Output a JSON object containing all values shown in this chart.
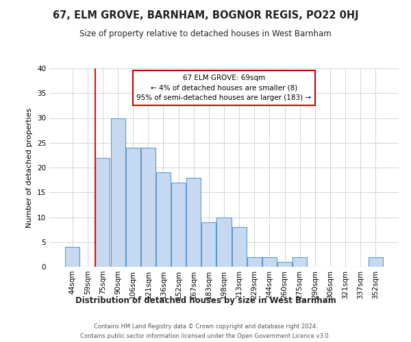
{
  "title": "67, ELM GROVE, BARNHAM, BOGNOR REGIS, PO22 0HJ",
  "subtitle": "Size of property relative to detached houses in West Barnham",
  "xlabel": "Distribution of detached houses by size in West Barnham",
  "ylabel": "Number of detached properties",
  "categories": [
    "44sqm",
    "59sqm",
    "75sqm",
    "90sqm",
    "106sqm",
    "121sqm",
    "136sqm",
    "152sqm",
    "167sqm",
    "183sqm",
    "198sqm",
    "213sqm",
    "229sqm",
    "244sqm",
    "260sqm",
    "275sqm",
    "290sqm",
    "306sqm",
    "321sqm",
    "337sqm",
    "352sqm"
  ],
  "values": [
    4,
    0,
    22,
    30,
    24,
    24,
    19,
    17,
    18,
    9,
    10,
    8,
    2,
    2,
    1,
    2,
    0,
    0,
    0,
    0,
    2
  ],
  "bar_color": "#c6d9f0",
  "bar_edge_color": "#5b9bd5",
  "red_line_index": 1.5,
  "annotation_line1": "67 ELM GROVE: 69sqm",
  "annotation_line2": "← 4% of detached houses are smaller (8)",
  "annotation_line3": "95% of semi-detached houses are larger (183) →",
  "annotation_box_edge": "#cc0000",
  "ylim": [
    0,
    40
  ],
  "footer1": "Contains HM Land Registry data © Crown copyright and database right 2024.",
  "footer2": "Contains public sector information licensed under the Open Government Licence v3.0."
}
